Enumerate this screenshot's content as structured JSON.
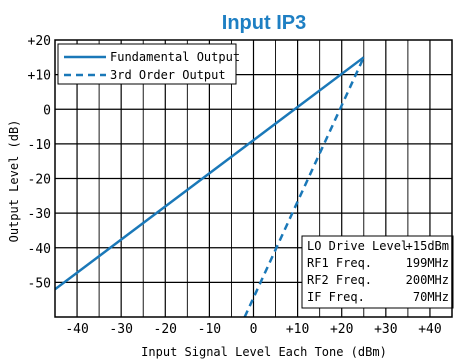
{
  "chart_data": {
    "type": "line",
    "title": "Input IP3",
    "xlabel": "Input Signal Level Each Tone (dBm)",
    "ylabel": "Output Level (dB)",
    "xlim": [
      -45,
      45
    ],
    "ylim": [
      -60,
      20
    ],
    "grid": true,
    "legend_position": "top-left",
    "x_ticks": [
      -40,
      -30,
      -20,
      -10,
      0,
      10,
      20,
      30,
      40
    ],
    "x_tick_labels": [
      "-40",
      "-30",
      "-20",
      "-10",
      "0",
      "+10",
      "+20",
      "+30",
      "+40"
    ],
    "y_ticks": [
      20,
      10,
      0,
      -10,
      -20,
      -30,
      -40,
      -50
    ],
    "y_tick_labels": [
      "+20",
      "+10",
      "0",
      "-10",
      "-20",
      "-30",
      "-40",
      "-50"
    ],
    "series": [
      {
        "name": "Fundamental Output",
        "style": "solid",
        "color": "#1a78b8",
        "points": [
          [
            -45,
            -52
          ],
          [
            25,
            15
          ]
        ]
      },
      {
        "name": "3rd Order Output",
        "style": "dashed",
        "color": "#1a78b8",
        "points": [
          [
            -2,
            -60
          ],
          [
            25,
            15
          ]
        ]
      }
    ],
    "annotation": {
      "position": "bottom-right",
      "rows": [
        {
          "label": "LO Drive Level",
          "value": "+15dBm"
        },
        {
          "label": "RF1 Freq.",
          "value": "199MHz"
        },
        {
          "label": "RF2 Freq.",
          "value": "200MHz"
        },
        {
          "label": "IF Freq.",
          "value": "70MHz"
        }
      ]
    }
  }
}
